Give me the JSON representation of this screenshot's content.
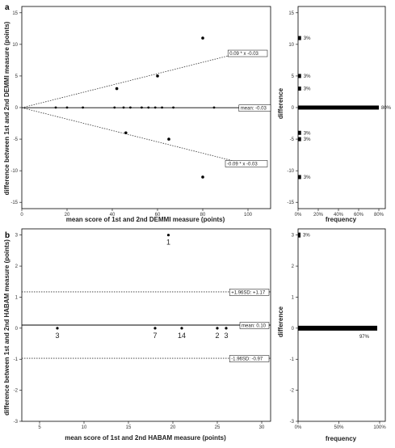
{
  "panels": {
    "a": {
      "label": "a"
    },
    "b": {
      "label": "b"
    }
  },
  "chart_data": [
    {
      "id": "a-main",
      "type": "scatter",
      "xlabel": "mean score of 1st and 2nd DEMMI measure (points)",
      "ylabel": "difference between 1st and 2nd DEMMI measure (points)",
      "xlim": [
        0,
        110
      ],
      "ylim": [
        -16,
        16
      ],
      "xticks": [
        0,
        20,
        40,
        60,
        80,
        100
      ],
      "yticks": [
        -15,
        -10,
        -5,
        0,
        5,
        10,
        15
      ],
      "points": [
        {
          "x": 15,
          "y": 0
        },
        {
          "x": 20,
          "y": 0
        },
        {
          "x": 27,
          "y": 0
        },
        {
          "x": 41,
          "y": 0
        },
        {
          "x": 45,
          "y": 0
        },
        {
          "x": 48,
          "y": 0
        },
        {
          "x": 53,
          "y": 0
        },
        {
          "x": 56,
          "y": 0
        },
        {
          "x": 59,
          "y": 0
        },
        {
          "x": 62,
          "y": 0
        },
        {
          "x": 67,
          "y": 0
        },
        {
          "x": 85,
          "y": 0
        },
        {
          "x": 42,
          "y": 3
        },
        {
          "x": 60,
          "y": 5
        },
        {
          "x": 80,
          "y": 11
        },
        {
          "x": 46,
          "y": -4
        },
        {
          "x": 65,
          "y": -5
        },
        {
          "x": 80,
          "y": -11
        }
      ],
      "mean_line": {
        "y": -0.03,
        "label": "mean: -0.03"
      },
      "upper_line": {
        "slope": 0.09,
        "intercept": -0.03,
        "label": "0.09 * x -0.03"
      },
      "lower_line": {
        "slope": -0.09,
        "intercept": -0.03,
        "label": "-0.09 * x -0.03"
      }
    },
    {
      "id": "a-hist",
      "type": "bar",
      "orientation": "horizontal",
      "xlabel": "frequency",
      "ylabel": "difference",
      "xticks": [
        "0%",
        "20%",
        "40%",
        "60%",
        "80%"
      ],
      "xlim": [
        0,
        80
      ],
      "ylim": [
        -16,
        16
      ],
      "yticks": [
        -15,
        -10,
        -5,
        0,
        5,
        10,
        15
      ],
      "bars": [
        {
          "y": 11,
          "value": 3,
          "label": "3%"
        },
        {
          "y": 5,
          "value": 3,
          "label": "3%"
        },
        {
          "y": 3,
          "value": 3,
          "label": "3%"
        },
        {
          "y": 0,
          "value": 80,
          "label": "80%"
        },
        {
          "y": -4,
          "value": 3,
          "label": "3%"
        },
        {
          "y": -5,
          "value": 3,
          "label": "3%"
        },
        {
          "y": -11,
          "value": 3,
          "label": "3%"
        }
      ]
    },
    {
      "id": "b-main",
      "type": "scatter",
      "xlabel": "mean score of 1st and 2nd HABAM measure (points)",
      "ylabel": "difference between 1st and 2nd HABAM measure (points)",
      "xlim": [
        3,
        31
      ],
      "ylim": [
        -3,
        3.2
      ],
      "xticks": [
        5,
        10,
        15,
        20,
        25,
        30
      ],
      "yticks": [
        -3,
        -2,
        -1,
        0,
        1,
        2,
        3
      ],
      "points": [
        {
          "x": 7,
          "y": 0,
          "n": "3"
        },
        {
          "x": 18,
          "y": 0,
          "n": "7"
        },
        {
          "x": 21,
          "y": 0,
          "n": "14"
        },
        {
          "x": 25,
          "y": 0,
          "n": "2"
        },
        {
          "x": 26,
          "y": 0,
          "n": "3"
        },
        {
          "x": 19.5,
          "y": 3,
          "n": "1"
        }
      ],
      "mean_line": {
        "y": 0.1,
        "label": "mean: 0.10"
      },
      "upper_line": {
        "y": 1.17,
        "label": "+1.96SD: +1.17"
      },
      "lower_line": {
        "y": -0.97,
        "label": "-1.96SD: -0.97"
      }
    },
    {
      "id": "b-hist",
      "type": "bar",
      "orientation": "horizontal",
      "xlabel": "frequency",
      "ylabel": "difference",
      "xticks": [
        "0%",
        "50%",
        "100%"
      ],
      "xlim": [
        0,
        100
      ],
      "ylim": [
        -3,
        3.2
      ],
      "yticks": [
        -3,
        -2,
        -1,
        0,
        1,
        2,
        3
      ],
      "bars": [
        {
          "y": 3,
          "value": 3,
          "label": "3%"
        },
        {
          "y": 0,
          "value": 97,
          "label": "97%"
        }
      ]
    }
  ]
}
